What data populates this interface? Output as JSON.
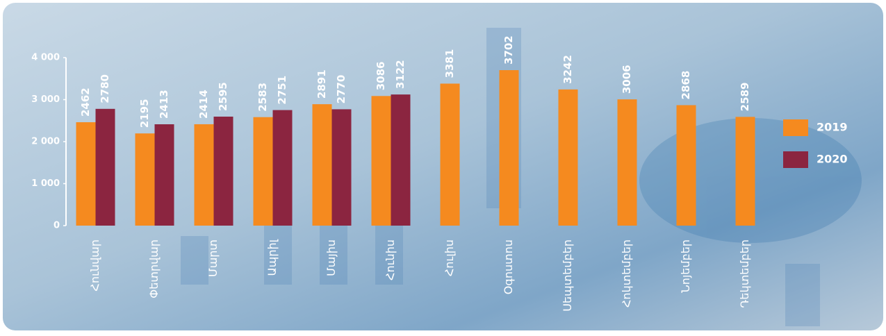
{
  "chart_data": {
    "type": "bar",
    "categories": [
      "Հունվար",
      "Փետրվար",
      "Մարտ",
      "Ապրիլ",
      "Մայիս",
      "Հունիս",
      "Հուլիս",
      "Օգոստոս",
      "Սեպտեմբեր",
      "Հոկտեմբեր",
      "Նոյեմբեր",
      "Դեկտեմբեր"
    ],
    "series": [
      {
        "name": "2019",
        "color": "#f58a1f",
        "values": [
          2462,
          2195,
          2414,
          2583,
          2891,
          3086,
          3381,
          3702,
          3242,
          3006,
          2868,
          2589
        ]
      },
      {
        "name": "2020",
        "color": "#8b2540",
        "values": [
          2780,
          2413,
          2595,
          2751,
          2770,
          3122,
          null,
          null,
          null,
          null,
          null,
          null
        ]
      }
    ],
    "ylim": [
      0,
      4000
    ],
    "yticks": [
      0,
      {
        "value": 1000,
        "label": "1 000"
      },
      {
        "value": 2000,
        "label": "2 000"
      },
      {
        "value": 3000,
        "label": "3 000"
      },
      {
        "value": 4000,
        "label": "4 000"
      }
    ],
    "legend": "right"
  }
}
